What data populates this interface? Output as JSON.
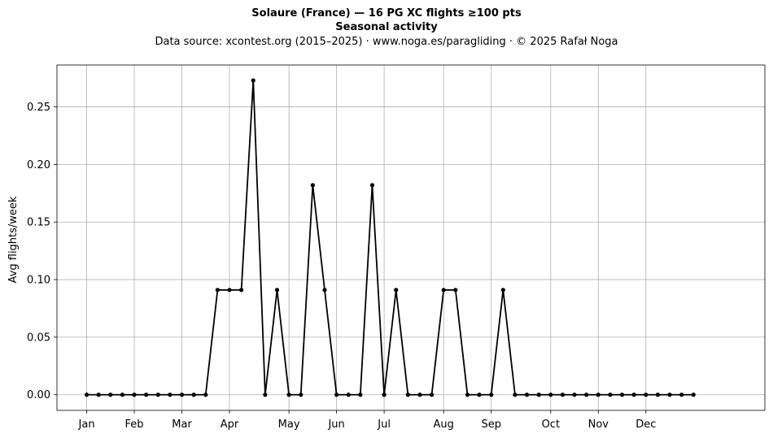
{
  "chart_data": {
    "type": "line",
    "title": "Solaure (France)  —  16 PG XC flights ≥100 pts",
    "subtitle": "Seasonal activity",
    "source_note": "Data source: xcontest.org (2015–2025)  ·  www.noga.es/paragliding  ·  © 2025 Rafał Noga",
    "xlabel": "",
    "ylabel": "Avg flights/week",
    "x_range": [
      -2.5,
      57
    ],
    "ylim": [
      -0.0136,
      0.2864
    ],
    "y_ticks": [
      0.0,
      0.05,
      0.1,
      0.15,
      0.2,
      0.25
    ],
    "y_tick_labels": [
      "0.00",
      "0.05",
      "0.10",
      "0.15",
      "0.20",
      "0.25"
    ],
    "x_ticks": [
      0,
      4,
      8,
      12,
      17,
      21,
      25,
      30,
      34,
      39,
      43,
      47
    ],
    "x_tick_labels": [
      "Jan",
      "Feb",
      "Mar",
      "Apr",
      "May",
      "Jun",
      "Jul",
      "Aug",
      "Sep",
      "Oct",
      "Nov",
      "Dec"
    ],
    "grid": true,
    "series": [
      {
        "name": "",
        "color": "#000000",
        "x": [
          0,
          1,
          2,
          3,
          4,
          5,
          6,
          7,
          8,
          9,
          10,
          11,
          12,
          13,
          14,
          15,
          16,
          17,
          18,
          19,
          20,
          21,
          22,
          23,
          24,
          25,
          26,
          27,
          28,
          29,
          30,
          31,
          32,
          33,
          34,
          35,
          36,
          37,
          38,
          39,
          40,
          41,
          42,
          43,
          44,
          45,
          46,
          47,
          48,
          49,
          50,
          51
        ],
        "values": [
          0,
          0,
          0,
          0,
          0,
          0,
          0,
          0,
          0,
          0,
          0,
          0.091,
          0.091,
          0.091,
          0.273,
          0,
          0.091,
          0,
          0,
          0.182,
          0.091,
          0,
          0,
          0,
          0.182,
          0,
          0.091,
          0,
          0,
          0,
          0.091,
          0.091,
          0,
          0,
          0,
          0.091,
          0,
          0,
          0,
          0,
          0,
          0,
          0,
          0,
          0,
          0,
          0,
          0,
          0,
          0,
          0,
          0
        ]
      }
    ]
  }
}
